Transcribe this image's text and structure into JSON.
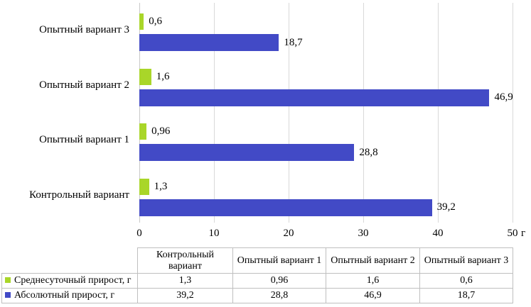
{
  "chart_data": {
    "type": "bar",
    "orientation": "horizontal",
    "title": "",
    "categories": [
      "Контрольный вариант",
      "Опытный вариант 1",
      "Опытный вариант 2",
      "Опытный вариант 3"
    ],
    "series": [
      {
        "name": "Среднесуточный прирост, г",
        "color": "#a9d629",
        "values": [
          1.3,
          0.96,
          1.6,
          0.6
        ],
        "labels": [
          "1,3",
          "0,96",
          "1,6",
          "0,6"
        ]
      },
      {
        "name": "Абсолютный прирост, г",
        "color": "#424ac6",
        "values": [
          39.2,
          28.8,
          46.9,
          18.7
        ],
        "labels": [
          "39,2",
          "28,8",
          "46,9",
          "18,7"
        ]
      }
    ],
    "x_axis": {
      "min": 0,
      "max": 50,
      "tick_values": [
        0,
        10,
        20,
        30,
        40,
        50
      ],
      "tick_labels": [
        "0",
        "10",
        "20",
        "30",
        "40",
        "50"
      ],
      "unit": "г"
    },
    "grid": true,
    "legend_position": "data-table-left",
    "category_display_order": "reversed-top-to-bottom",
    "colors": {
      "gridline": "#d9d9d9",
      "axis_line": "#c9c9c9",
      "table_border": "#bfbfbf",
      "text": "#000000"
    }
  }
}
